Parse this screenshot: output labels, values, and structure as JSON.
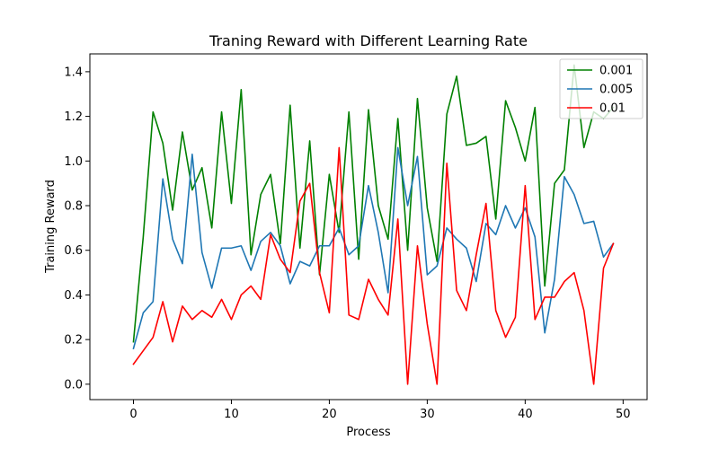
{
  "chart_data": {
    "type": "line",
    "title": "Traning Reward with Different Learning Rate",
    "xlabel": "Process",
    "ylabel": "Training Reward",
    "xlim": [
      -4.45,
      52.45
    ],
    "ylim": [
      -0.069,
      1.48
    ],
    "xticks": [
      0,
      10,
      20,
      30,
      40,
      50
    ],
    "yticks": [
      0.0,
      0.2,
      0.4,
      0.6,
      0.8,
      1.0,
      1.2,
      1.4
    ],
    "legend_position": "top-right",
    "x": [
      0,
      1,
      2,
      3,
      4,
      5,
      6,
      7,
      8,
      9,
      10,
      11,
      12,
      13,
      14,
      15,
      16,
      17,
      18,
      19,
      20,
      21,
      22,
      23,
      24,
      25,
      26,
      27,
      28,
      29,
      30,
      31,
      32,
      33,
      34,
      35,
      36,
      37,
      38,
      39,
      40,
      41,
      42,
      43,
      44,
      45,
      46,
      47,
      48,
      49
    ],
    "series": [
      {
        "name": "0.001",
        "color": "#008000",
        "values": [
          0.19,
          0.66,
          1.22,
          1.08,
          0.78,
          1.13,
          0.87,
          0.97,
          0.7,
          1.22,
          0.81,
          1.32,
          0.58,
          0.85,
          0.94,
          0.63,
          1.25,
          0.61,
          1.09,
          0.49,
          0.94,
          0.68,
          1.22,
          0.56,
          1.23,
          0.8,
          0.65,
          1.19,
          0.6,
          1.28,
          0.79,
          0.55,
          1.21,
          1.38,
          1.07,
          1.08,
          1.11,
          0.74,
          1.27,
          1.15,
          1.0,
          1.24,
          0.44,
          0.9,
          0.96,
          1.43,
          1.06,
          1.22,
          1.19,
          1.24
        ]
      },
      {
        "name": "0.005",
        "color": "#1f77b4",
        "values": [
          0.16,
          0.32,
          0.37,
          0.92,
          0.65,
          0.54,
          1.03,
          0.59,
          0.43,
          0.61,
          0.61,
          0.62,
          0.51,
          0.64,
          0.68,
          0.62,
          0.45,
          0.55,
          0.53,
          0.62,
          0.62,
          0.7,
          0.58,
          0.62,
          0.89,
          0.68,
          0.41,
          1.06,
          0.8,
          1.02,
          0.49,
          0.53,
          0.7,
          0.65,
          0.61,
          0.46,
          0.72,
          0.67,
          0.8,
          0.7,
          0.79,
          0.66,
          0.23,
          0.47,
          0.93,
          0.85,
          0.72,
          0.73,
          0.57,
          0.63
        ]
      },
      {
        "name": "0.01",
        "color": "#ff0000",
        "values": [
          0.09,
          0.15,
          0.21,
          0.37,
          0.19,
          0.35,
          0.29,
          0.33,
          0.3,
          0.38,
          0.29,
          0.4,
          0.44,
          0.38,
          0.67,
          0.56,
          0.5,
          0.82,
          0.9,
          0.5,
          0.32,
          1.06,
          0.31,
          0.29,
          0.47,
          0.38,
          0.31,
          0.74,
          0.0,
          0.62,
          0.27,
          0.0,
          0.99,
          0.42,
          0.33,
          0.58,
          0.81,
          0.33,
          0.21,
          0.3,
          0.89,
          0.29,
          0.39,
          0.39,
          0.46,
          0.5,
          0.33,
          0.0,
          0.52,
          0.63
        ]
      }
    ]
  }
}
